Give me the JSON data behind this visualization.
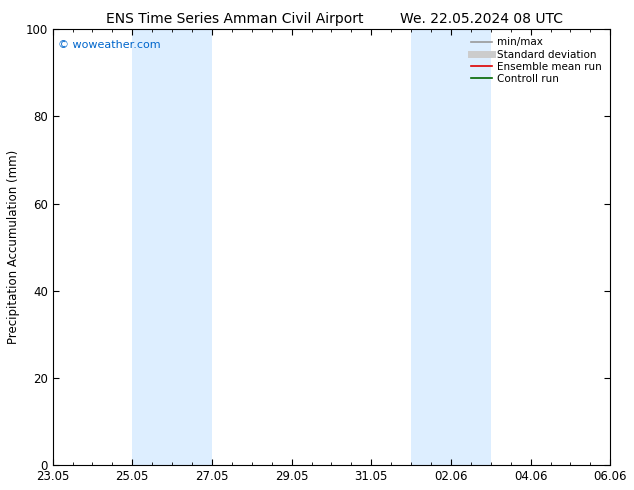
{
  "title_left": "ENS Time Series Amman Civil Airport",
  "title_right": "We. 22.05.2024 08 UTC",
  "ylabel": "Precipitation Accumulation (mm)",
  "watermark": "© woweather.com",
  "watermark_color": "#0066cc",
  "ylim": [
    0,
    100
  ],
  "x_start_day": "2024-05-22",
  "x_end_day": "2024-06-07",
  "xtick_labels": [
    "23.05",
    "25.05",
    "27.05",
    "29.05",
    "31.05",
    "02.06",
    "04.06",
    "06.06"
  ],
  "xtick_days": [
    1,
    3,
    5,
    7,
    9,
    11,
    13,
    15
  ],
  "shaded_regions": [
    {
      "x_start_day": 3,
      "x_end_day": 5
    },
    {
      "x_start_day": 10,
      "x_end_day": 12
    }
  ],
  "shaded_color": "#ddeeff",
  "legend_entries": [
    {
      "label": "min/max",
      "color": "#999999",
      "lw": 1.2
    },
    {
      "label": "Standard deviation",
      "color": "#cccccc",
      "lw": 5
    },
    {
      "label": "Ensemble mean run",
      "color": "#dd0000",
      "lw": 1.2
    },
    {
      "label": "Controll run",
      "color": "#006600",
      "lw": 1.2
    }
  ],
  "bg_color": "#ffffff",
  "title_fontsize": 10,
  "label_fontsize": 8.5,
  "tick_fontsize": 8.5,
  "legend_fontsize": 7.5
}
